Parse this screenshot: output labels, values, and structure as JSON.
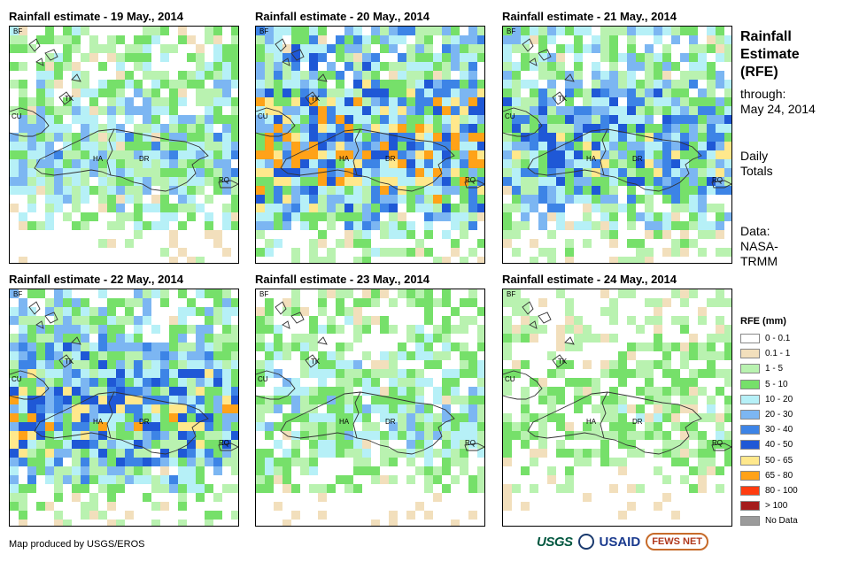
{
  "panels": [
    {
      "title": "Rainfall estimate - 19 May., 2014",
      "seed": 11,
      "rain": 0.45
    },
    {
      "title": "Rainfall estimate - 20 May., 2014",
      "seed": 23,
      "rain": 0.8
    },
    {
      "title": "Rainfall estimate - 21 May., 2014",
      "seed": 37,
      "rain": 0.62
    },
    {
      "title": "Rainfall estimate - 22 May., 2014",
      "seed": 41,
      "rain": 0.66
    },
    {
      "title": "Rainfall estimate - 23 May., 2014",
      "seed": 53,
      "rain": 0.38
    },
    {
      "title": "Rainfall estimate - 24 May., 2014",
      "seed": 67,
      "rain": 0.25
    }
  ],
  "place_labels": {
    "bf": "BF",
    "cu": "CU",
    "tk": "TK",
    "ha": "HA",
    "dr": "DR",
    "rq": "RQ"
  },
  "sidebar": {
    "title_lines": [
      "Rainfall",
      "Estimate",
      "(RFE)"
    ],
    "through_label": "through:",
    "through_date": "May 24, 2014",
    "totals_lines": [
      "Daily",
      "Totals"
    ],
    "data_lines": [
      "Data:",
      "NASA-",
      "TRMM"
    ]
  },
  "legend": {
    "title": "RFE (mm)",
    "items": [
      {
        "label": "0 - 0.1",
        "color": "#ffffff"
      },
      {
        "label": "0.1 - 1",
        "color": "#f2dfbc"
      },
      {
        "label": "1 - 5",
        "color": "#b9f2b0"
      },
      {
        "label": "5 - 10",
        "color": "#76e06a"
      },
      {
        "label": "10 - 20",
        "color": "#b6f0f7"
      },
      {
        "label": "20 - 30",
        "color": "#7cb6f2"
      },
      {
        "label": "30 - 40",
        "color": "#3d84e6"
      },
      {
        "label": "40 - 50",
        "color": "#1f58d6"
      },
      {
        "label": "50 - 65",
        "color": "#ffe88c"
      },
      {
        "label": "65 - 80",
        "color": "#ffa218"
      },
      {
        "label": "80 - 100",
        "color": "#ff3c10"
      },
      {
        "label": "> 100",
        "color": "#a51c1c"
      },
      {
        "label": "No Data",
        "color": "#9b9b9b"
      }
    ]
  },
  "credit": "Map produced by USGS/EROS",
  "logos": {
    "usgs": "USGS",
    "usaid": "USAID",
    "fews": "FEWS NET"
  }
}
